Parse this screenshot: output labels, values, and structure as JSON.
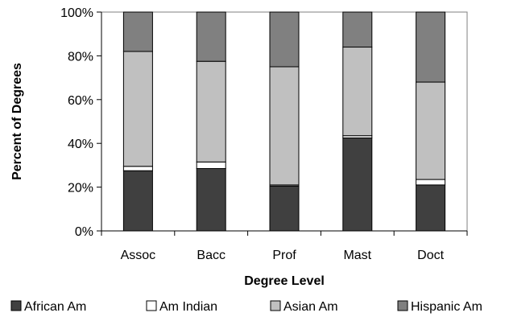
{
  "chart_data": {
    "type": "bar",
    "stacked": true,
    "categories": [
      "Assoc",
      "Bacc",
      "Prof",
      "Mast",
      "Doct"
    ],
    "series": [
      {
        "name": "African Am",
        "values": [
          27.5,
          28.5,
          20.5,
          42.5,
          21
        ],
        "color": "#404040"
      },
      {
        "name": "Am Indian",
        "values": [
          2,
          3,
          0.5,
          1,
          2.5
        ],
        "color": "#ffffff"
      },
      {
        "name": "Asian Am",
        "values": [
          52.5,
          46,
          54,
          40.5,
          44.5
        ],
        "color": "#c0c0c0"
      },
      {
        "name": "Hispanic Am",
        "values": [
          18,
          22.5,
          25,
          16,
          32
        ],
        "color": "#808080"
      }
    ],
    "xlabel": "Degree Level",
    "ylabel": "Percent of Degrees",
    "ylim": [
      0,
      100
    ],
    "yticks": [
      "0%",
      "20%",
      "40%",
      "60%",
      "80%",
      "100%"
    ],
    "legend_position": "bottom",
    "grid": false
  }
}
